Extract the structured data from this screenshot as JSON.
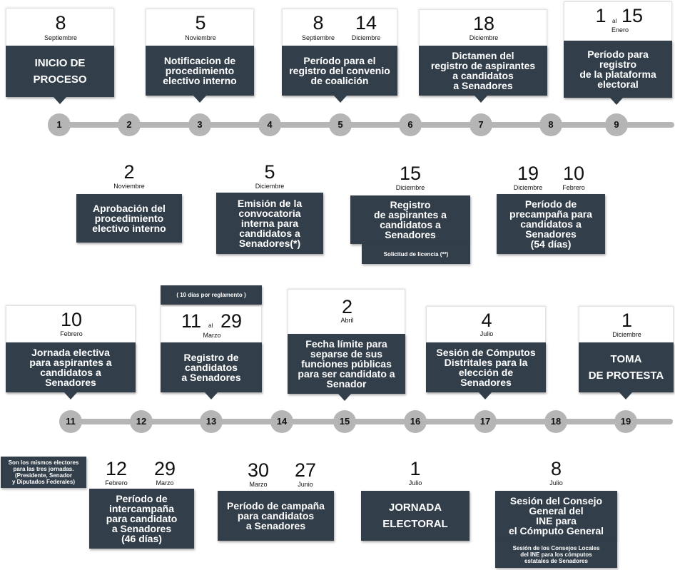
{
  "row1": {
    "circles": [
      "1",
      "2",
      "3",
      "4",
      "5",
      "6",
      "7",
      "8",
      "9"
    ],
    "events": [
      {
        "day": "8",
        "month": "Septiembre",
        "text": "INICIO DE\nPROCESO"
      },
      {
        "day": "5",
        "month": "Noviembre",
        "text": "Notificacion de\nprocedimiento\nelectivo interno"
      },
      {
        "day1": "8",
        "month1": "Septiembre",
        "day2": "14",
        "month2": "Diciembre",
        "text": "Período para el\nregistro del convenio\nde coalición"
      },
      {
        "day": "18",
        "month": "Diciembre",
        "text": "Dictamen del\nregistro de  aspirantes\na candidatos\na Senadores"
      },
      {
        "day1": "1",
        "al": "al",
        "day2": "15",
        "month": "Enero",
        "text": "Período para\nregistro\nde la plataforma\nelectoral"
      }
    ]
  },
  "row2": {
    "events": [
      {
        "day": "2",
        "month": "Noviembre",
        "text": "Aprobación del\nprocedimiento\nelectivo interno"
      },
      {
        "day": "5",
        "month": "Diciembre",
        "text": "Emisión de la\nconvocatoria\ninterna para\ncandidatos a\nSenadores(*)"
      },
      {
        "day": "15",
        "month": "Diciembre",
        "text": "Registro\nde aspirantes a\ncandidatos a\nSenadores",
        "note": "Solicitud de licencia (**)"
      },
      {
        "day1": "19",
        "month1": "Diciembre",
        "day2": "10",
        "month2": "Febrero",
        "text": "Período de\nprecampaña para\ncandidatos a\nSenadores\n(54 días)"
      }
    ]
  },
  "row3": {
    "circles": [
      "11",
      "12",
      "13",
      "14",
      "15",
      "16",
      "17",
      "18",
      "19"
    ],
    "events": [
      {
        "day": "10",
        "month": "Febrero",
        "text": "Jornada electiva\npara aspirantes a\ncandidatos a\nSenadores"
      },
      {
        "note": "( 10 días por reglamento )",
        "day1": "11",
        "al": "al",
        "day2": "29",
        "month": "Marzo",
        "text": "Registro de\ncandidatos\na Senadores"
      },
      {
        "day": "2",
        "month": "Abril",
        "text": "Fecha límite para\nseparse de sus\nfunciones públicas\npara ser candidato a\nSenador"
      },
      {
        "day": "4",
        "month": "Julio",
        "text": "Sesión de Cómputos\nDistritales para la\nelección de\nSenadores"
      },
      {
        "day": "1",
        "month": "Diciembre",
        "text": "TOMA\nDE PROTESTA"
      }
    ]
  },
  "row4": {
    "events": [
      {
        "side_note": "Son los mismos electores\npara las tres jornadas.\n(Presidente, Senador\ny Diputados Federales)",
        "day1": "12",
        "month1": "Febrero",
        "day2": "29",
        "month2": "Marzo",
        "text": "Período de\nintercampaña\npara candidato\na Senadores\n(46 días)"
      },
      {
        "day1": "30",
        "month1": "Marzo",
        "day2": "27",
        "month2": "Junio",
        "text": "Período de campaña\npara candidatos\na Senadores"
      },
      {
        "day": "1",
        "month": "Julio",
        "text": "JORNADA\nELECTORAL"
      },
      {
        "day": "8",
        "month": "Julio",
        "text": "Sesión del Consejo\nGeneral del\nINE para\nel Cómputo General",
        "note": "Sesión de los Consejos Locales\ndel INE para los cómputos\nestatales de Senadores"
      }
    ]
  },
  "colors": {
    "card": "#323e49",
    "track": "#b5b5b5",
    "background": "#ffffff"
  }
}
